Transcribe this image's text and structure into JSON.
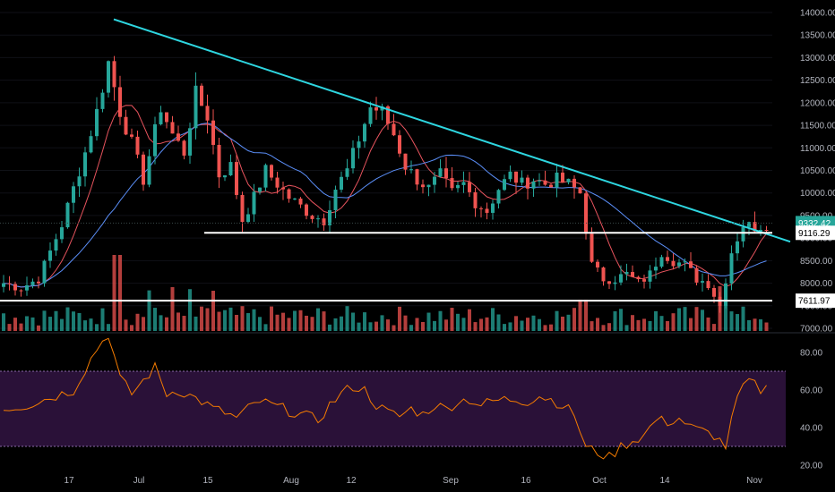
{
  "chart_data": [
    {
      "type": "candlestick",
      "title": "",
      "y_axis_ticks": [
        "7000.00",
        "7500.00",
        "8000.00",
        "8500.00",
        "9000.00",
        "9500.00",
        "10000.00",
        "10500.00",
        "11000.00",
        "11500.00",
        "12000.00",
        "12500.00",
        "13000.00",
        "13500.00",
        "14000.00"
      ],
      "x_axis_ticks": [
        "17",
        "Jul",
        "15",
        "Aug",
        "12",
        "Sep",
        "16",
        "Oct",
        "14",
        "Nov"
      ],
      "ylim": [
        7000,
        14150
      ],
      "candle_up_color": "#26a69a",
      "candle_down_color": "#ef5350",
      "close_anchor_points": [
        [
          0,
          8000
        ],
        [
          3,
          7900
        ],
        [
          6,
          8100
        ],
        [
          10,
          9300
        ],
        [
          14,
          10900
        ],
        [
          16,
          11800
        ],
        [
          18,
          12900
        ],
        [
          20,
          11800
        ],
        [
          22,
          11100
        ],
        [
          24,
          10300
        ],
        [
          27,
          11900
        ],
        [
          29,
          11300
        ],
        [
          31,
          10900
        ],
        [
          33,
          12200
        ],
        [
          35,
          11700
        ],
        [
          37,
          10400
        ],
        [
          39,
          10600
        ],
        [
          41,
          9400
        ],
        [
          43,
          9900
        ],
        [
          45,
          10500
        ],
        [
          47,
          10200
        ],
        [
          49,
          9900
        ],
        [
          51,
          9700
        ],
        [
          53,
          9500
        ],
        [
          55,
          9400
        ],
        [
          57,
          10100
        ],
        [
          59,
          10500
        ],
        [
          61,
          11200
        ],
        [
          63,
          11900
        ],
        [
          65,
          11800
        ],
        [
          67,
          11300
        ],
        [
          69,
          10600
        ],
        [
          71,
          10300
        ],
        [
          73,
          10100
        ],
        [
          75,
          10400
        ],
        [
          77,
          10000
        ],
        [
          79,
          10200
        ],
        [
          81,
          9800
        ],
        [
          83,
          9600
        ],
        [
          85,
          10100
        ],
        [
          87,
          10400
        ],
        [
          89,
          10200
        ],
        [
          91,
          10300
        ],
        [
          93,
          10200
        ],
        [
          95,
          10300
        ],
        [
          97,
          10200
        ],
        [
          99,
          10000
        ],
        [
          101,
          8400
        ],
        [
          103,
          8100
        ],
        [
          105,
          8100
        ],
        [
          107,
          8200
        ],
        [
          109,
          8000
        ],
        [
          111,
          8200
        ],
        [
          113,
          8700
        ],
        [
          115,
          8500
        ],
        [
          117,
          8400
        ],
        [
          119,
          8100
        ],
        [
          121,
          8000
        ],
        [
          123,
          7500
        ],
        [
          125,
          8700
        ],
        [
          127,
          9300
        ],
        [
          129,
          9250
        ],
        [
          131,
          9300
        ]
      ],
      "volume_color_up": "#26a69a",
      "volume_color_down": "#ef5350",
      "moving_averages": [
        {
          "color": "#e8545e"
        },
        {
          "color": "#5b8ff9"
        }
      ],
      "trendline_color": "#2ed6e0",
      "horizontal_levels": [
        {
          "value": 9116.29,
          "label": "9116.29"
        },
        {
          "value": 7611.97,
          "label": "7611.97"
        }
      ],
      "last_price": {
        "value": 9332.42,
        "label": "9332.42",
        "color": "#26a69a"
      }
    },
    {
      "type": "line",
      "indicator_line_color": "#f57c00",
      "y_axis_ticks": [
        "20.00",
        "40.00",
        "60.00",
        "80.00"
      ],
      "ylim": [
        15,
        95
      ],
      "band": [
        30,
        70
      ],
      "band_color": "#2a1138",
      "anchor_points": [
        [
          0,
          50
        ],
        [
          4,
          52
        ],
        [
          8,
          56
        ],
        [
          12,
          60
        ],
        [
          16,
          82
        ],
        [
          18,
          90
        ],
        [
          20,
          66
        ],
        [
          22,
          58
        ],
        [
          26,
          72
        ],
        [
          28,
          58
        ],
        [
          30,
          60
        ],
        [
          32,
          57
        ],
        [
          34,
          54
        ],
        [
          36,
          50
        ],
        [
          38,
          48
        ],
        [
          40,
          45
        ],
        [
          42,
          50
        ],
        [
          44,
          54
        ],
        [
          46,
          52
        ],
        [
          48,
          50
        ],
        [
          50,
          48
        ],
        [
          52,
          46
        ],
        [
          54,
          44
        ],
        [
          56,
          52
        ],
        [
          58,
          58
        ],
        [
          60,
          62
        ],
        [
          62,
          60
        ],
        [
          64,
          52
        ],
        [
          66,
          48
        ],
        [
          68,
          46
        ],
        [
          70,
          50
        ],
        [
          72,
          47
        ],
        [
          74,
          52
        ],
        [
          76,
          50
        ],
        [
          78,
          54
        ],
        [
          80,
          55
        ],
        [
          82,
          52
        ],
        [
          84,
          54
        ],
        [
          86,
          55
        ],
        [
          88,
          55
        ],
        [
          90,
          54
        ],
        [
          92,
          57
        ],
        [
          94,
          55
        ],
        [
          96,
          52
        ],
        [
          98,
          47
        ],
        [
          100,
          29
        ],
        [
          102,
          27
        ],
        [
          104,
          24
        ],
        [
          106,
          30
        ],
        [
          108,
          33
        ],
        [
          110,
          36
        ],
        [
          112,
          44
        ],
        [
          114,
          43
        ],
        [
          116,
          45
        ],
        [
          118,
          40
        ],
        [
          120,
          38
        ],
        [
          122,
          36
        ],
        [
          124,
          30
        ],
        [
          126,
          56
        ],
        [
          128,
          65
        ],
        [
          130,
          60
        ],
        [
          131,
          61
        ]
      ]
    }
  ]
}
